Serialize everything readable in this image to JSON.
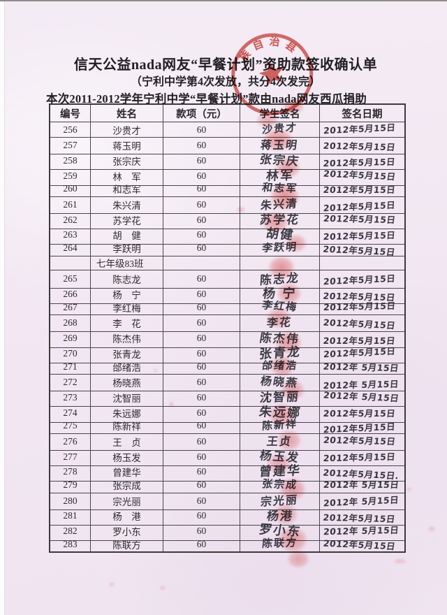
{
  "header": {
    "title": "信天公益nada网友“早餐计划”资助款签收确认单",
    "subtitle": "（宁利中学第4次发放，共分4次发完）",
    "note": "本次2011-2012学年宁利中学“早餐计划”款由nada网友西瓜捐助"
  },
  "seal": {
    "arc_text": "族自治县",
    "color": "#c8342b"
  },
  "table": {
    "headers": [
      "编号",
      "姓名",
      "款项（元）",
      "学生签名",
      "签名日期"
    ],
    "rows": [
      {
        "id": "256",
        "name": "沙贵才",
        "amount": "60",
        "signature": "沙贵才",
        "date": "2012年5月15日"
      },
      {
        "id": "257",
        "name": "蒋玉明",
        "amount": "60",
        "signature": "蒋玉明",
        "date": "2012年5月15日"
      },
      {
        "id": "258",
        "name": "张宗庆",
        "amount": "60",
        "signature": "张宗庆",
        "date": "2012年5月15日"
      },
      {
        "id": "259",
        "name": "林　军",
        "amount": "60",
        "signature": "林军",
        "date": "2012年5月15日"
      },
      {
        "id": "260",
        "name": "和志军",
        "amount": "60",
        "signature": "和志军",
        "date": "2012年5月15日"
      },
      {
        "id": "261",
        "name": "朱兴清",
        "amount": "60",
        "signature": "朱兴清",
        "date": "2012年5月15日"
      },
      {
        "id": "262",
        "name": "苏学花",
        "amount": "60",
        "signature": "苏学花",
        "date": "2012年5月15日"
      },
      {
        "id": "263",
        "name": "胡　健",
        "amount": "60",
        "signature": "胡健",
        "date": "2012年5月15日"
      },
      {
        "id": "264",
        "name": "李跃明",
        "amount": "60",
        "signature": "李跃明",
        "date": "2012年5月15日"
      },
      {
        "id": "",
        "name": "七年级83班",
        "amount": "",
        "signature": "",
        "date": "",
        "class_row": true
      },
      {
        "id": "265",
        "name": "陈志龙",
        "amount": "60",
        "signature": "陈志龙",
        "date": "2012年5月15日"
      },
      {
        "id": "266",
        "name": "杨　宁",
        "amount": "60",
        "signature": "杨 宁",
        "date": "2012年5月15日"
      },
      {
        "id": "267",
        "name": "李红梅",
        "amount": "60",
        "signature": "李红梅",
        "date": "2012年5月15日"
      },
      {
        "id": "268",
        "name": "李　花",
        "amount": "60",
        "signature": "李花",
        "date": "2012年5月15日"
      },
      {
        "id": "269",
        "name": "陈杰伟",
        "amount": "60",
        "signature": "陈杰伟",
        "date": "2012年5月15日"
      },
      {
        "id": "270",
        "name": "张青龙",
        "amount": "60",
        "signature": "张青龙",
        "date": "2012年5月15日"
      },
      {
        "id": "271",
        "name": "邰绪浩",
        "amount": "60",
        "signature": "邰绪浩",
        "date": "2012年 5月15日"
      },
      {
        "id": "272",
        "name": "杨晓燕",
        "amount": "60",
        "signature": "杨晓燕",
        "date": "2012年 5月15日"
      },
      {
        "id": "273",
        "name": "沈智丽",
        "amount": "60",
        "signature": "沈智丽",
        "date": "2012年 5月15日"
      },
      {
        "id": "274",
        "name": "朱远娜",
        "amount": "60",
        "signature": "朱远娜",
        "date": "2012年5月15日"
      },
      {
        "id": "275",
        "name": "陈新祥",
        "amount": "60",
        "signature": "陈新祥",
        "date": "2012年5月15日"
      },
      {
        "id": "276",
        "name": "王　贞",
        "amount": "60",
        "signature": "王贞",
        "date": "2012年5月15日"
      },
      {
        "id": "277",
        "name": "杨玉发",
        "amount": "60",
        "signature": "杨玉发",
        "date": "2012年5月15日"
      },
      {
        "id": "278",
        "name": "曾建华",
        "amount": "60",
        "signature": "曾建华",
        "date": "2012年5月15日."
      },
      {
        "id": "279",
        "name": "张宗成",
        "amount": "60",
        "signature": "张宗成",
        "date": "2012年 5月15日"
      },
      {
        "id": "280",
        "name": "宗光丽",
        "amount": "60",
        "signature": "宗光丽",
        "date": "2012年 5月15日"
      },
      {
        "id": "281",
        "name": "杨　港",
        "amount": "60",
        "signature": "杨港",
        "date": "2012年5月15日"
      },
      {
        "id": "282",
        "name": "罗小东",
        "amount": "60",
        "signature": "罗小东",
        "date": "2012年 5月15日"
      },
      {
        "id": "283",
        "name": "陈联方",
        "amount": "60",
        "signature": "陈联方",
        "date": "2012年5月15日"
      }
    ]
  }
}
